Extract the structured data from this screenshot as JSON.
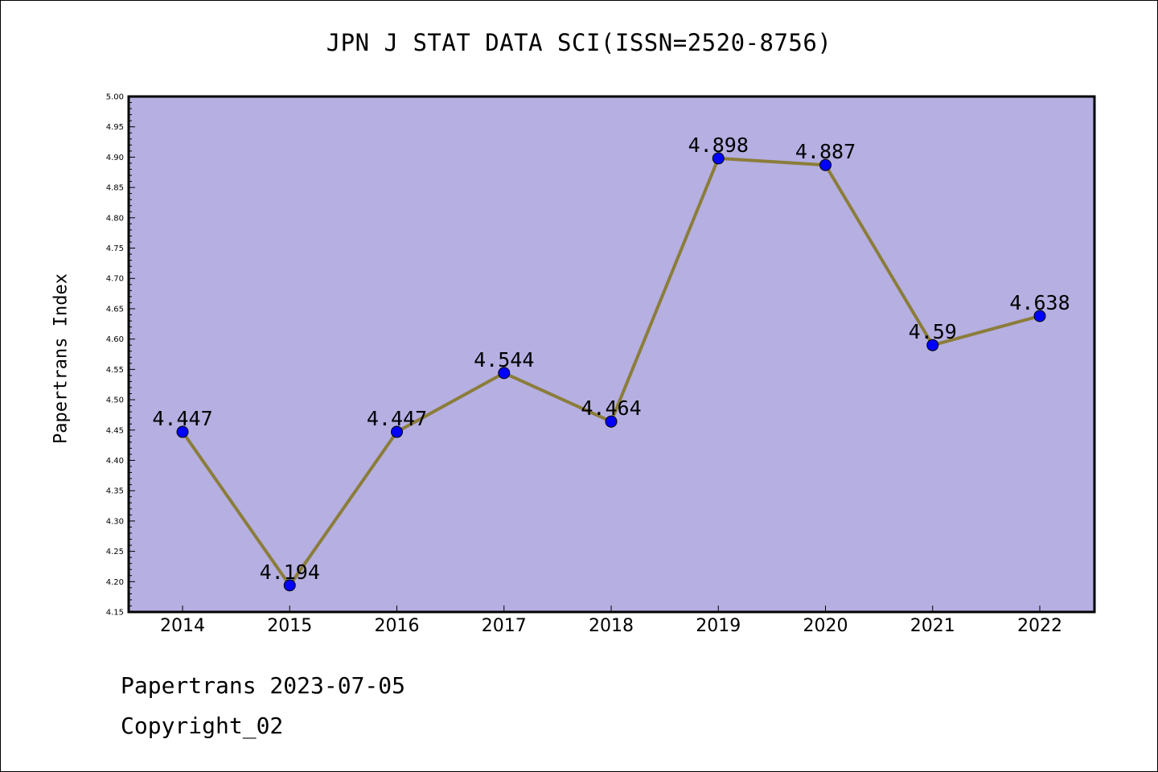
{
  "chart_data": {
    "type": "line",
    "title": "JPN J STAT DATA SCI(ISSN=2520-8756)",
    "xlabel": "",
    "ylabel": "Papertrans Index",
    "categories": [
      "2014",
      "2015",
      "2016",
      "2017",
      "2018",
      "2019",
      "2020",
      "2021",
      "2022"
    ],
    "series": [
      {
        "values": [
          4.447,
          4.194,
          4.447,
          4.544,
          4.464,
          4.898,
          4.887,
          4.59,
          4.638
        ],
        "labels": [
          "4.447",
          "4.194",
          "4.447",
          "4.544",
          "4.464",
          "4.898",
          "4.887",
          "4.59",
          "4.638"
        ],
        "line_color": "#8B7D3A",
        "marker_color": "#0000FF"
      }
    ],
    "ylim": [
      4.15,
      5.0
    ],
    "yticks": [
      "4.15",
      "4.20",
      "4.25",
      "4.30",
      "4.35",
      "4.40",
      "4.45",
      "4.50",
      "4.55",
      "4.60",
      "4.65",
      "4.70",
      "4.75",
      "4.80",
      "4.85",
      "4.90",
      "4.95",
      "5.00"
    ],
    "plot_background": "#B5AFE2",
    "grid": false,
    "legend": "none"
  },
  "footer": {
    "date_text": "Papertrans 2023-07-05",
    "copyright_text": "Copyright_02"
  }
}
